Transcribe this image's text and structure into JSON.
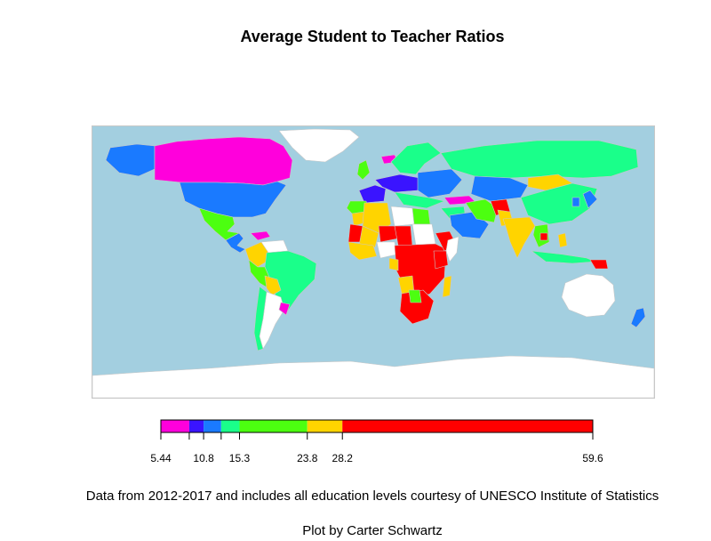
{
  "title": "Average Student to Teacher Ratios",
  "caption_source": "Data from 2012-2017 and includes all education levels courtesy of UNESCO Institute of Statistics",
  "caption_author": "Plot by Carter Schwartz",
  "colors": {
    "ocean": "#a3cfe0",
    "no_data": "#ffffff",
    "border": "#c8c8c8"
  },
  "legend": {
    "min": 5.44,
    "max": 59.6,
    "tick_labels": [
      "5.44",
      "10.8",
      "15.3",
      "23.8",
      "28.2",
      "59.6"
    ],
    "bins": [
      {
        "from": 5.44,
        "to": 9.0,
        "color": "#ff00dc"
      },
      {
        "from": 9.0,
        "to": 10.8,
        "color": "#3a14ff"
      },
      {
        "from": 10.8,
        "to": 13.0,
        "color": "#1a7aff"
      },
      {
        "from": 13.0,
        "to": 15.3,
        "color": "#1aff8a"
      },
      {
        "from": 15.3,
        "to": 23.8,
        "color": "#4cff10"
      },
      {
        "from": 23.8,
        "to": 28.2,
        "color": "#ffd400"
      },
      {
        "from": 28.2,
        "to": 59.6,
        "color": "#ff0000"
      }
    ]
  },
  "regions": [
    {
      "name": "Alaska",
      "color": "#1a7aff"
    },
    {
      "name": "Canada",
      "color": "#ff00dc"
    },
    {
      "name": "Greenland",
      "color": "#ffffff"
    },
    {
      "name": "United States",
      "color": "#1a7aff"
    },
    {
      "name": "Mexico",
      "color": "#4cff10"
    },
    {
      "name": "Central America",
      "color": "#1a7aff"
    },
    {
      "name": "Caribbean",
      "color": "#ff00dc"
    },
    {
      "name": "Colombia",
      "color": "#ffd400"
    },
    {
      "name": "Venezuela",
      "color": "#ffffff"
    },
    {
      "name": "Brazil",
      "color": "#1aff8a"
    },
    {
      "name": "Peru",
      "color": "#4cff10"
    },
    {
      "name": "Bolivia",
      "color": "#ffd400"
    },
    {
      "name": "Argentina",
      "color": "#ffffff"
    },
    {
      "name": "Chile",
      "color": "#1aff8a"
    },
    {
      "name": "Uruguay",
      "color": "#ff00dc"
    },
    {
      "name": "Iceland",
      "color": "#ff00dc"
    },
    {
      "name": "United Kingdom",
      "color": "#4cff10"
    },
    {
      "name": "France",
      "color": "#3a14ff"
    },
    {
      "name": "Iberia",
      "color": "#4cff10"
    },
    {
      "name": "Central Europe",
      "color": "#3a14ff"
    },
    {
      "name": "Scandinavia",
      "color": "#1aff8a"
    },
    {
      "name": "Eastern Europe",
      "color": "#1a7aff"
    },
    {
      "name": "Balkans",
      "color": "#1aff8a"
    },
    {
      "name": "Russia",
      "color": "#1aff8a"
    },
    {
      "name": "Kazakhstan",
      "color": "#1a7aff"
    },
    {
      "name": "Mongolia",
      "color": "#ffd400"
    },
    {
      "name": "China",
      "color": "#1aff8a"
    },
    {
      "name": "Turkey",
      "color": "#ff00dc"
    },
    {
      "name": "Middle East",
      "color": "#1aff8a"
    },
    {
      "name": "Saudi Arabia",
      "color": "#1a7aff"
    },
    {
      "name": "Iran",
      "color": "#4cff10"
    },
    {
      "name": "Afghanistan",
      "color": "#ff0000"
    },
    {
      "name": "Pakistan",
      "color": "#ffd400"
    },
    {
      "name": "India",
      "color": "#ffd400"
    },
    {
      "name": "Southeast Asia",
      "color": "#4cff10"
    },
    {
      "name": "Cambodia",
      "color": "#ff0000"
    },
    {
      "name": "Philippines",
      "color": "#ffd400"
    },
    {
      "name": "Indonesia",
      "color": "#1aff8a"
    },
    {
      "name": "Papua New Guinea",
      "color": "#ff0000"
    },
    {
      "name": "Japan",
      "color": "#1a7aff"
    },
    {
      "name": "Korea",
      "color": "#1a7aff"
    },
    {
      "name": "Australia",
      "color": "#ffffff"
    },
    {
      "name": "New Zealand",
      "color": "#1a7aff"
    },
    {
      "name": "Morocco",
      "color": "#ffd400"
    },
    {
      "name": "Algeria",
      "color": "#ffd400"
    },
    {
      "name": "Libya",
      "color": "#ffffff"
    },
    {
      "name": "Egypt",
      "color": "#4cff10"
    },
    {
      "name": "Mauritania",
      "color": "#ff0000"
    },
    {
      "name": "Mali",
      "color": "#ffd400"
    },
    {
      "name": "Niger",
      "color": "#ff0000"
    },
    {
      "name": "Chad",
      "color": "#ff0000"
    },
    {
      "name": "Sudan",
      "color": "#ffffff"
    },
    {
      "name": "West Africa",
      "color": "#ffd400"
    },
    {
      "name": "Nigeria",
      "color": "#ffffff"
    },
    {
      "name": "Central Africa",
      "color": "#ff0000"
    },
    {
      "name": "Gabon",
      "color": "#ffd400"
    },
    {
      "name": "Ethiopia",
      "color": "#ff0000"
    },
    {
      "name": "Somalia",
      "color": "#ffffff"
    },
    {
      "name": "Kenya",
      "color": "#ff0000"
    },
    {
      "name": "Angola",
      "color": "#ffd400"
    },
    {
      "name": "Southern Africa",
      "color": "#ff0000"
    },
    {
      "name": "Botswana",
      "color": "#4cff10"
    },
    {
      "name": "Madagascar",
      "color": "#ffd400"
    },
    {
      "name": "Antarctica",
      "color": "#ffffff"
    }
  ]
}
